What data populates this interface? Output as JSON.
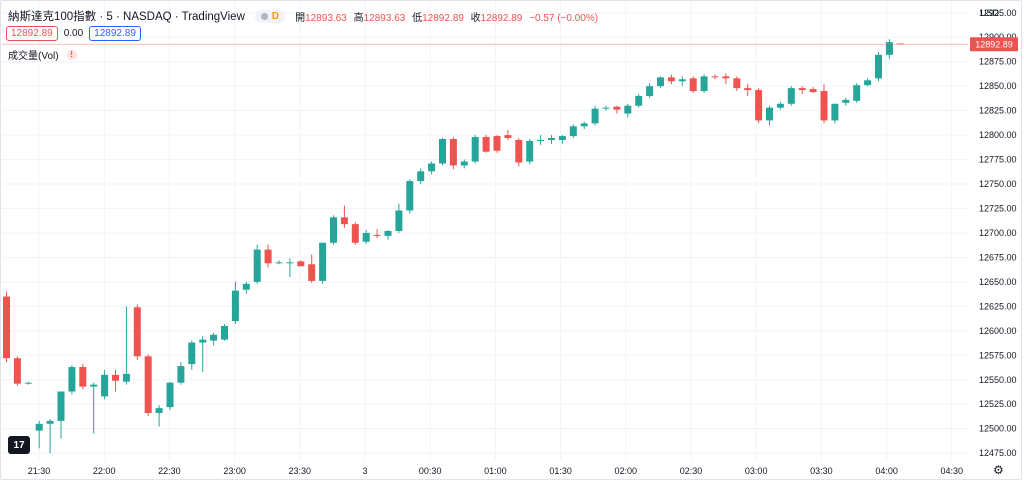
{
  "header": {
    "symbol": "納斯達克100指數 · 5 · NASDAQ · TradingView",
    "d_badge": "D",
    "ohlc": [
      {
        "label": "開",
        "value": "12893.63"
      },
      {
        "label": "高",
        "value": "12893.63"
      },
      {
        "label": "低",
        "value": "12892.89"
      },
      {
        "label": "收",
        "value": "12892.89"
      }
    ],
    "change": "−0.57 (−0.00%)"
  },
  "quote_row": {
    "bid": "12892.89",
    "spread": "0.00",
    "ask": "12892.89"
  },
  "volume_label": "成交量(Vol)",
  "volume_warn": "!",
  "currency": "USD",
  "price_tag": "12892.89",
  "logo_text": "17",
  "gear_icon": "⚙",
  "colors": {
    "up": "#26a69a",
    "down": "#ef5350",
    "grid": "#f0f3fa",
    "text": "#131722",
    "price_line": "#ef5350"
  },
  "chart_data": {
    "type": "candlestick",
    "y_ticks": [
      "12925.00",
      "12900.00",
      "12875.00",
      "12850.00",
      "12825.00",
      "12800.00",
      "12775.00",
      "12750.00",
      "12725.00",
      "12700.00",
      "12675.00",
      "12650.00",
      "12625.00",
      "12600.00",
      "12575.00",
      "12550.00",
      "12525.00",
      "12500.00",
      "12475.00"
    ],
    "ylim": [
      12468,
      12936
    ],
    "x_ticks": [
      "21:30",
      "22:00",
      "22:30",
      "23:00",
      "23:30",
      "3",
      "00:30",
      "01:00",
      "01:30",
      "02:00",
      "02:30",
      "03:00",
      "03:30",
      "04:00",
      "04:30"
    ],
    "last_price": 12892.89,
    "candles": [
      {
        "o": 12635,
        "h": 12640,
        "l": 12568,
        "c": 12572
      },
      {
        "o": 12572,
        "h": 12574,
        "l": 12544,
        "c": 12546
      },
      {
        "o": 12546,
        "h": 12548,
        "l": 12545,
        "c": 12547
      },
      {
        "o": 12498,
        "h": 12508,
        "l": 12480,
        "c": 12505
      },
      {
        "o": 12505,
        "h": 12510,
        "l": 12475,
        "c": 12508
      },
      {
        "o": 12508,
        "h": 12538,
        "l": 12490,
        "c": 12538
      },
      {
        "o": 12538,
        "h": 12565,
        "l": 12535,
        "c": 12563
      },
      {
        "o": 12563,
        "h": 12566,
        "l": 12540,
        "c": 12543
      },
      {
        "o": 12543,
        "h": 12547,
        "l": 12495,
        "c": 12545
      },
      {
        "o": 12533,
        "h": 12560,
        "l": 12530,
        "c": 12555
      },
      {
        "o": 12555,
        "h": 12560,
        "l": 12538,
        "c": 12549
      },
      {
        "o": 12548,
        "h": 12625,
        "l": 12545,
        "c": 12556
      },
      {
        "o": 12624,
        "h": 12627,
        "l": 12570,
        "c": 12574
      },
      {
        "o": 12574,
        "h": 12576,
        "l": 12513,
        "c": 12516
      },
      {
        "o": 12516,
        "h": 12524,
        "l": 12502,
        "c": 12521
      },
      {
        "o": 12522,
        "h": 12548,
        "l": 12519,
        "c": 12547
      },
      {
        "o": 12547,
        "h": 12568,
        "l": 12545,
        "c": 12564
      },
      {
        "o": 12566,
        "h": 12590,
        "l": 12560,
        "c": 12588
      },
      {
        "o": 12588,
        "h": 12595,
        "l": 12558,
        "c": 12591
      },
      {
        "o": 12590,
        "h": 12598,
        "l": 12585,
        "c": 12596
      },
      {
        "o": 12591,
        "h": 12607,
        "l": 12590,
        "c": 12605
      },
      {
        "o": 12610,
        "h": 12650,
        "l": 12607,
        "c": 12641
      },
      {
        "o": 12642,
        "h": 12650,
        "l": 12638,
        "c": 12648
      },
      {
        "o": 12650,
        "h": 12688,
        "l": 12648,
        "c": 12683
      },
      {
        "o": 12683,
        "h": 12688,
        "l": 12665,
        "c": 12669
      },
      {
        "o": 12669,
        "h": 12672,
        "l": 12668,
        "c": 12670
      },
      {
        "o": 12670,
        "h": 12674,
        "l": 12655,
        "c": 12670
      },
      {
        "o": 12671,
        "h": 12672,
        "l": 12666,
        "c": 12666
      },
      {
        "o": 12668,
        "h": 12678,
        "l": 12649,
        "c": 12651
      },
      {
        "o": 12651,
        "h": 12690,
        "l": 12648,
        "c": 12690
      },
      {
        "o": 12690,
        "h": 12718,
        "l": 12688,
        "c": 12716
      },
      {
        "o": 12716,
        "h": 12728,
        "l": 12705,
        "c": 12709
      },
      {
        "o": 12709,
        "h": 12711,
        "l": 12688,
        "c": 12690
      },
      {
        "o": 12691,
        "h": 12703,
        "l": 12689,
        "c": 12700
      },
      {
        "o": 12698,
        "h": 12704,
        "l": 12695,
        "c": 12697
      },
      {
        "o": 12697,
        "h": 12703,
        "l": 12693,
        "c": 12702
      },
      {
        "o": 12702,
        "h": 12730,
        "l": 12700,
        "c": 12723
      },
      {
        "o": 12723,
        "h": 12755,
        "l": 12720,
        "c": 12753
      },
      {
        "o": 12753,
        "h": 12766,
        "l": 12750,
        "c": 12763
      },
      {
        "o": 12763,
        "h": 12773,
        "l": 12760,
        "c": 12771
      },
      {
        "o": 12771,
        "h": 12797,
        "l": 12769,
        "c": 12796
      },
      {
        "o": 12796,
        "h": 12798,
        "l": 12765,
        "c": 12769
      },
      {
        "o": 12769,
        "h": 12775,
        "l": 12766,
        "c": 12773
      },
      {
        "o": 12773,
        "h": 12800,
        "l": 12771,
        "c": 12798
      },
      {
        "o": 12798,
        "h": 12800,
        "l": 12782,
        "c": 12783
      },
      {
        "o": 12799,
        "h": 12800,
        "l": 12782,
        "c": 12784
      },
      {
        "o": 12800,
        "h": 12805,
        "l": 12795,
        "c": 12797
      },
      {
        "o": 12795,
        "h": 12797,
        "l": 12768,
        "c": 12772
      },
      {
        "o": 12773,
        "h": 12796,
        "l": 12770,
        "c": 12794
      },
      {
        "o": 12795,
        "h": 12800,
        "l": 12790,
        "c": 12795
      },
      {
        "o": 12795,
        "h": 12800,
        "l": 12791,
        "c": 12797
      },
      {
        "o": 12795,
        "h": 12800,
        "l": 12791,
        "c": 12799
      },
      {
        "o": 12799,
        "h": 12811,
        "l": 12797,
        "c": 12809
      },
      {
        "o": 12809,
        "h": 12814,
        "l": 12806,
        "c": 12812
      },
      {
        "o": 12812,
        "h": 12830,
        "l": 12810,
        "c": 12827
      },
      {
        "o": 12827,
        "h": 12830,
        "l": 12825,
        "c": 12828
      },
      {
        "o": 12829,
        "h": 12830,
        "l": 12822,
        "c": 12826
      },
      {
        "o": 12822,
        "h": 12832,
        "l": 12818,
        "c": 12830
      },
      {
        "o": 12830,
        "h": 12842,
        "l": 12828,
        "c": 12840
      },
      {
        "o": 12840,
        "h": 12853,
        "l": 12838,
        "c": 12850
      },
      {
        "o": 12850,
        "h": 12860,
        "l": 12848,
        "c": 12859
      },
      {
        "o": 12859,
        "h": 12862,
        "l": 12852,
        "c": 12855
      },
      {
        "o": 12855,
        "h": 12860,
        "l": 12850,
        "c": 12857
      },
      {
        "o": 12858,
        "h": 12860,
        "l": 12843,
        "c": 12845
      },
      {
        "o": 12845,
        "h": 12862,
        "l": 12843,
        "c": 12860
      },
      {
        "o": 12860,
        "h": 12862,
        "l": 12857,
        "c": 12859
      },
      {
        "o": 12860,
        "h": 12863,
        "l": 12852,
        "c": 12858
      },
      {
        "o": 12858,
        "h": 12860,
        "l": 12845,
        "c": 12848
      },
      {
        "o": 12848,
        "h": 12852,
        "l": 12840,
        "c": 12846
      },
      {
        "o": 12846,
        "h": 12848,
        "l": 12812,
        "c": 12815
      },
      {
        "o": 12815,
        "h": 12830,
        "l": 12810,
        "c": 12828
      },
      {
        "o": 12828,
        "h": 12834,
        "l": 12826,
        "c": 12832
      },
      {
        "o": 12832,
        "h": 12850,
        "l": 12830,
        "c": 12848
      },
      {
        "o": 12848,
        "h": 12850,
        "l": 12842,
        "c": 12846
      },
      {
        "o": 12847,
        "h": 12849,
        "l": 12843,
        "c": 12844
      },
      {
        "o": 12845,
        "h": 12852,
        "l": 12812,
        "c": 12815
      },
      {
        "o": 12815,
        "h": 12832,
        "l": 12812,
        "c": 12832
      },
      {
        "o": 12833,
        "h": 12838,
        "l": 12830,
        "c": 12836
      },
      {
        "o": 12835,
        "h": 12853,
        "l": 12833,
        "c": 12851
      },
      {
        "o": 12851,
        "h": 12858,
        "l": 12850,
        "c": 12856
      },
      {
        "o": 12858,
        "h": 12885,
        "l": 12855,
        "c": 12882
      },
      {
        "o": 12882,
        "h": 12898,
        "l": 12878,
        "c": 12895
      },
      {
        "o": 12893.63,
        "h": 12893.63,
        "l": 12892.89,
        "c": 12892.89
      }
    ]
  }
}
